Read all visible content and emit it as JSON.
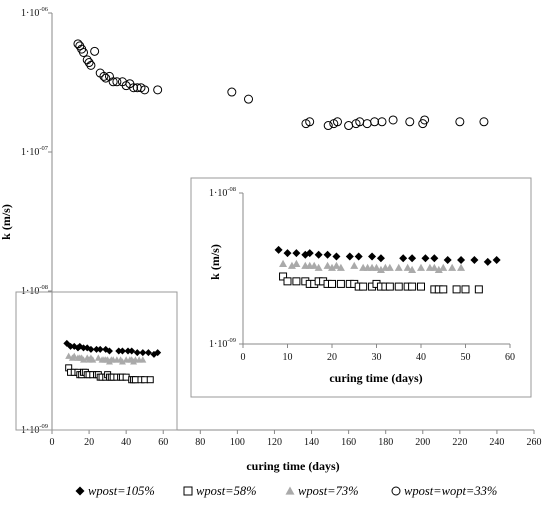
{
  "chart_data": [
    {
      "type": "scatter",
      "xlabel": "curing time (days)",
      "ylabel": "k (m/s)",
      "y_scale": "log",
      "xlim": [
        0,
        260
      ],
      "ylim": [
        1e-09,
        1e-06
      ],
      "x_ticks": [
        "0",
        "20",
        "40",
        "60",
        "80",
        "100",
        "120",
        "140",
        "160",
        "180",
        "200",
        "220",
        "240",
        "260"
      ],
      "y_ticks": [
        {
          "value": 1e-06,
          "base": "1·10",
          "exp": "-06"
        },
        {
          "value": 1e-07,
          "base": "1·10",
          "exp": "-07"
        },
        {
          "value": 1e-08,
          "base": "1·10",
          "exp": "-08"
        },
        {
          "value": 1e-09,
          "base": "1·10",
          "exp": "-09"
        }
      ],
      "legend_position": "bottom",
      "series": [
        {
          "name": "wpost=105%",
          "marker": "diamond-filled",
          "color": "#000000",
          "x": [
            8,
            10,
            12,
            14,
            15,
            17,
            19,
            21,
            24,
            26,
            29,
            31,
            36,
            38,
            41,
            43,
            46,
            49,
            52,
            55,
            57
          ],
          "y": [
            4.2e-09,
            4e-09,
            4e-09,
            3.9e-09,
            4e-09,
            3.9e-09,
            3.9e-09,
            3.8e-09,
            3.8e-09,
            3.8e-09,
            3.8e-09,
            3.7e-09,
            3.7e-09,
            3.7e-09,
            3.7e-09,
            3.7e-09,
            3.6e-09,
            3.6e-09,
            3.6e-09,
            3.5e-09,
            3.6e-09
          ]
        },
        {
          "name": "wpost=58%",
          "marker": "square-open",
          "color": "#000000",
          "x": [
            9,
            10,
            12,
            14,
            15,
            16,
            17,
            18,
            19,
            20,
            22,
            24,
            25,
            26,
            27,
            29,
            30,
            31,
            32,
            33,
            35,
            37,
            38,
            40,
            43,
            44,
            45,
            48,
            50,
            53
          ],
          "y": [
            2.8e-09,
            2.6e-09,
            2.6e-09,
            2.6e-09,
            2.5e-09,
            2.5e-09,
            2.6e-09,
            2.6e-09,
            2.5e-09,
            2.5e-09,
            2.5e-09,
            2.5e-09,
            2.5e-09,
            2.4e-09,
            2.4e-09,
            2.4e-09,
            2.5e-09,
            2.4e-09,
            2.4e-09,
            2.4e-09,
            2.4e-09,
            2.4e-09,
            2.4e-09,
            2.4e-09,
            2.3e-09,
            2.3e-09,
            2.3e-09,
            2.3e-09,
            2.3e-09,
            2.3e-09
          ]
        },
        {
          "name": "wpost=73%",
          "marker": "triangle-filled",
          "color": "#aaaaaa",
          "x": [
            9,
            11,
            12,
            14,
            15,
            16,
            17,
            19,
            20,
            21,
            22,
            25,
            27,
            28,
            29,
            30,
            31,
            32,
            33,
            35,
            37,
            38,
            40,
            42,
            43,
            44,
            45,
            47,
            49
          ],
          "y": [
            3.4e-09,
            3.3e-09,
            3.4e-09,
            3.3e-09,
            3.3e-09,
            3.3e-09,
            3.2e-09,
            3.3e-09,
            3.2e-09,
            3.3e-09,
            3.2e-09,
            3.3e-09,
            3.2e-09,
            3.2e-09,
            3.2e-09,
            3.2e-09,
            3.1e-09,
            3.2e-09,
            3.2e-09,
            3.2e-09,
            3.2e-09,
            3.1e-09,
            3.2e-09,
            3.2e-09,
            3.2e-09,
            3.1e-09,
            3.2e-09,
            3.2e-09,
            3.2e-09
          ]
        },
        {
          "name": "wpost=wopt=33%",
          "marker": "circle-open",
          "color": "#000000",
          "x": [
            14,
            15,
            16,
            17,
            19,
            20,
            21,
            23,
            26,
            28,
            29,
            31,
            33,
            35,
            38,
            40,
            42,
            44,
            46,
            48,
            50,
            57,
            97,
            106,
            137,
            139,
            149,
            152,
            154,
            160,
            164,
            166,
            170,
            174,
            178,
            184,
            193,
            200,
            201,
            220,
            233
          ],
          "y": [
            6e-07,
            5.8e-07,
            5.5e-07,
            5.2e-07,
            4.6e-07,
            4.4e-07,
            4.2e-07,
            5.3e-07,
            3.7e-07,
            3.5e-07,
            3.4e-07,
            3.5e-07,
            3.2e-07,
            3.2e-07,
            3.2e-07,
            3e-07,
            3.1e-07,
            2.9e-07,
            2.9e-07,
            2.9e-07,
            2.8e-07,
            2.8e-07,
            2.7e-07,
            2.4e-07,
            1.6e-07,
            1.65e-07,
            1.55e-07,
            1.6e-07,
            1.65e-07,
            1.55e-07,
            1.6e-07,
            1.65e-07,
            1.6e-07,
            1.65e-07,
            1.65e-07,
            1.7e-07,
            1.65e-07,
            1.6e-07,
            1.7e-07,
            1.65e-07,
            1.65e-07
          ]
        }
      ]
    },
    {
      "type": "scatter",
      "xlabel": "curing time (days)",
      "ylabel": "k (m/s)",
      "y_scale": "log",
      "xlim": [
        0,
        60
      ],
      "ylim": [
        1e-09,
        1e-08
      ],
      "x_ticks": [
        "0",
        "10",
        "20",
        "30",
        "40",
        "50",
        "60"
      ],
      "y_ticks": [
        {
          "value": 1e-08,
          "base": "1·10",
          "exp": "-08"
        },
        {
          "value": 1e-09,
          "base": "1·10",
          "exp": "-09"
        }
      ],
      "series_ref": [
        "wpost=105%",
        "wpost=58%",
        "wpost=73%"
      ]
    }
  ]
}
